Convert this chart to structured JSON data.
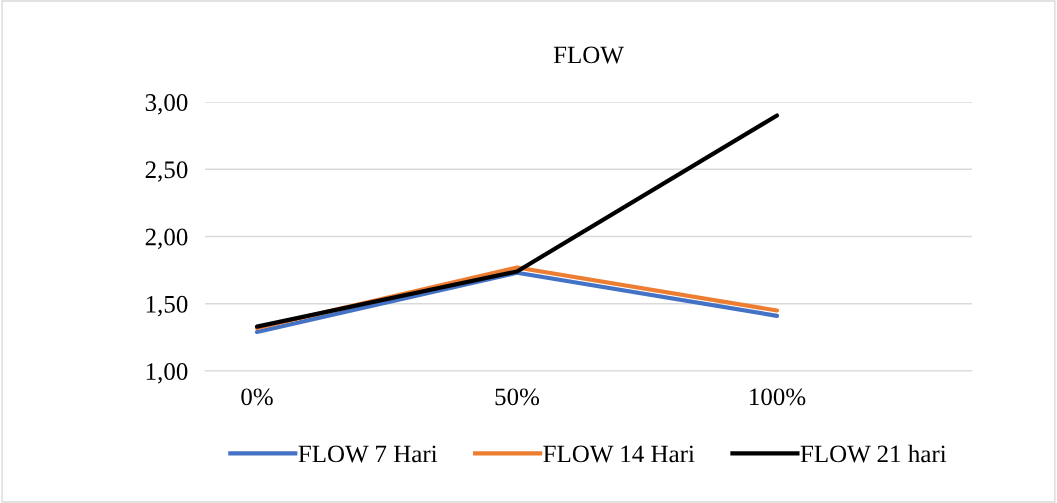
{
  "chart_data": {
    "type": "line",
    "title": "FLOW",
    "categories": [
      "0%",
      "50%",
      "100%"
    ],
    "series": [
      {
        "name": "FLOW 7 Hari",
        "color": "#4472c4",
        "values": [
          1.29,
          1.73,
          1.41
        ]
      },
      {
        "name": "FLOW 14 Hari",
        "color": "#ed7d31",
        "values": [
          1.32,
          1.77,
          1.45
        ]
      },
      {
        "name": "FLOW 21 hari",
        "color": "#000000",
        "values": [
          1.33,
          1.74,
          2.9
        ]
      }
    ],
    "ylim": [
      1.0,
      3.0
    ],
    "yticks": [
      {
        "value": 1.0,
        "label": "1,00"
      },
      {
        "value": 1.5,
        "label": "1,50"
      },
      {
        "value": 2.0,
        "label": "2,00"
      },
      {
        "value": 2.5,
        "label": "2,50"
      },
      {
        "value": 3.0,
        "label": "3,00"
      }
    ],
    "grid": "y",
    "legend": "bottom",
    "marker": "none",
    "line_style": "solid"
  }
}
